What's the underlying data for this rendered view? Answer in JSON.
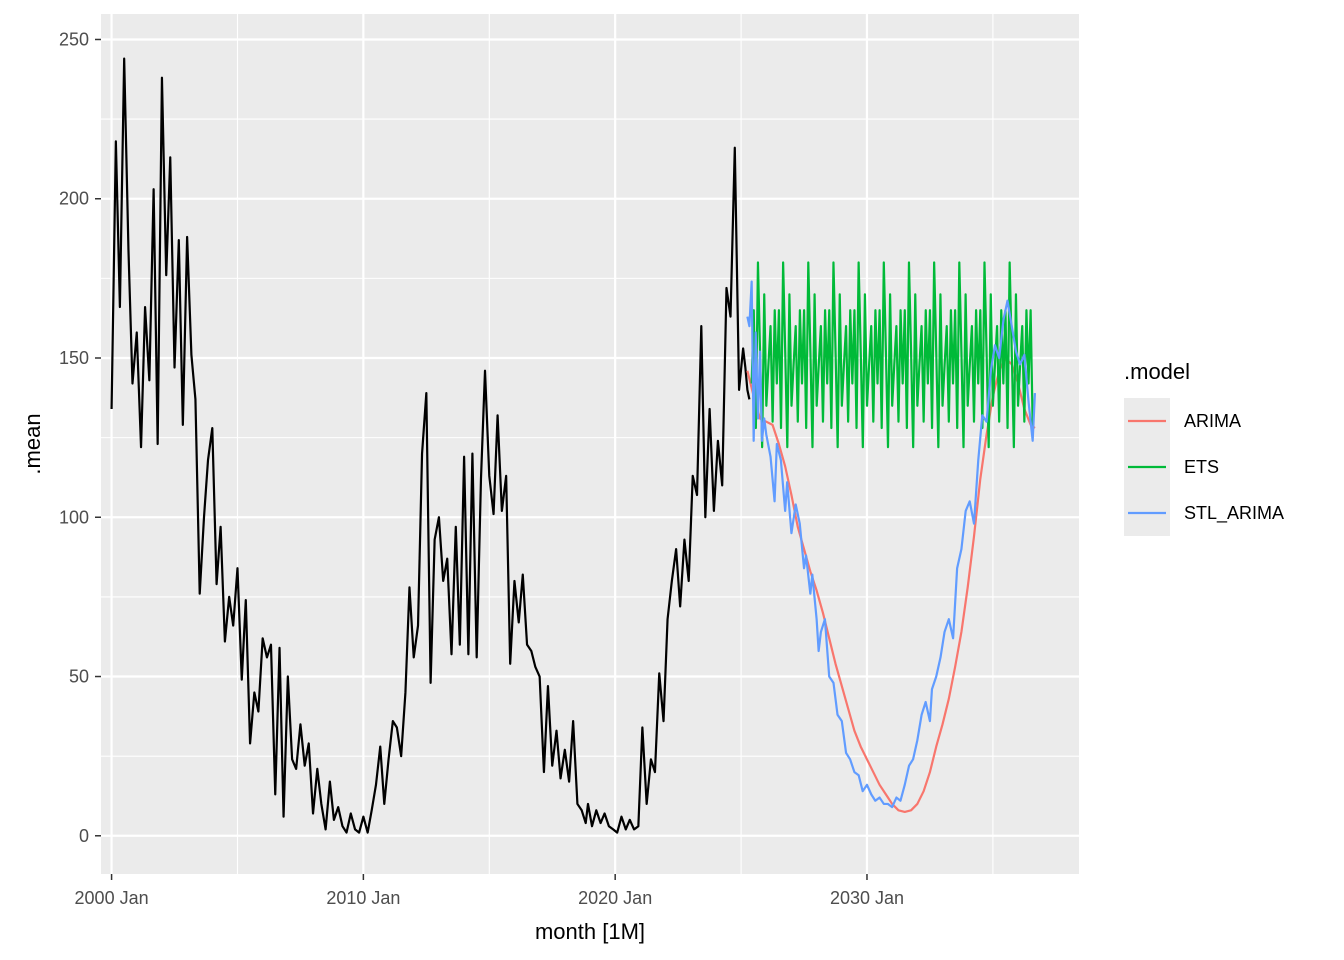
{
  "chart_data": {
    "type": "line",
    "xlabel": "month [1M]",
    "ylabel": ".mean",
    "xlim": [
      1999.58,
      2038.42
    ],
    "ylim": [
      -12,
      258
    ],
    "x_ticks": [
      {
        "value": 2000,
        "label": "2000 Jan"
      },
      {
        "value": 2010,
        "label": "2010 Jan"
      },
      {
        "value": 2020,
        "label": "2020 Jan"
      },
      {
        "value": 2030,
        "label": "2030 Jan"
      }
    ],
    "x_minor_ticks": [
      2005,
      2015,
      2025,
      2035
    ],
    "y_ticks": [
      0,
      50,
      100,
      150,
      200,
      250
    ],
    "y_minor_ticks": [
      25,
      75,
      125,
      175,
      225
    ],
    "grid": true,
    "legend": {
      "title": ".model",
      "placement": "right",
      "entries": [
        {
          "label": "ARIMA",
          "color": "#F8766D"
        },
        {
          "label": "ETS",
          "color": "#00BA38"
        },
        {
          "label": "STL_ARIMA",
          "color": "#619CFF"
        }
      ]
    },
    "history": {
      "color": "#000000",
      "points": [
        [
          2000.0,
          134
        ],
        [
          2000.17,
          218
        ],
        [
          2000.33,
          166
        ],
        [
          2000.5,
          244
        ],
        [
          2000.67,
          184
        ],
        [
          2000.83,
          142
        ],
        [
          2001.0,
          158
        ],
        [
          2001.17,
          122
        ],
        [
          2001.33,
          166
        ],
        [
          2001.5,
          143
        ],
        [
          2001.67,
          203
        ],
        [
          2001.83,
          123
        ],
        [
          2002.0,
          238
        ],
        [
          2002.17,
          176
        ],
        [
          2002.33,
          213
        ],
        [
          2002.5,
          147
        ],
        [
          2002.67,
          187
        ],
        [
          2002.83,
          129
        ],
        [
          2003.0,
          188
        ],
        [
          2003.17,
          151
        ],
        [
          2003.33,
          137
        ],
        [
          2003.5,
          76
        ],
        [
          2003.67,
          100
        ],
        [
          2003.83,
          118
        ],
        [
          2004.0,
          128
        ],
        [
          2004.17,
          79
        ],
        [
          2004.33,
          97
        ],
        [
          2004.5,
          61
        ],
        [
          2004.67,
          75
        ],
        [
          2004.83,
          66
        ],
        [
          2005.0,
          84
        ],
        [
          2005.17,
          49
        ],
        [
          2005.33,
          74
        ],
        [
          2005.5,
          29
        ],
        [
          2005.67,
          45
        ],
        [
          2005.83,
          39
        ],
        [
          2006.0,
          62
        ],
        [
          2006.17,
          56
        ],
        [
          2006.33,
          60
        ],
        [
          2006.5,
          13
        ],
        [
          2006.67,
          59
        ],
        [
          2006.83,
          6
        ],
        [
          2007.0,
          50
        ],
        [
          2007.17,
          24
        ],
        [
          2007.33,
          21
        ],
        [
          2007.5,
          35
        ],
        [
          2007.67,
          22
        ],
        [
          2007.83,
          29
        ],
        [
          2008.0,
          7
        ],
        [
          2008.17,
          21
        ],
        [
          2008.33,
          10
        ],
        [
          2008.5,
          2
        ],
        [
          2008.67,
          17
        ],
        [
          2008.83,
          5
        ],
        [
          2009.0,
          9
        ],
        [
          2009.17,
          3
        ],
        [
          2009.33,
          1
        ],
        [
          2009.5,
          7
        ],
        [
          2009.67,
          2
        ],
        [
          2009.83,
          1
        ],
        [
          2010.0,
          6
        ],
        [
          2010.17,
          1
        ],
        [
          2010.33,
          8
        ],
        [
          2010.5,
          16
        ],
        [
          2010.67,
          28
        ],
        [
          2010.83,
          10
        ],
        [
          2011.0,
          24
        ],
        [
          2011.17,
          36
        ],
        [
          2011.33,
          34
        ],
        [
          2011.5,
          25
        ],
        [
          2011.67,
          45
        ],
        [
          2011.83,
          78
        ],
        [
          2012.0,
          56
        ],
        [
          2012.17,
          66
        ],
        [
          2012.33,
          120
        ],
        [
          2012.5,
          139
        ],
        [
          2012.67,
          48
        ],
        [
          2012.83,
          93
        ],
        [
          2013.0,
          100
        ],
        [
          2013.17,
          80
        ],
        [
          2013.33,
          87
        ],
        [
          2013.5,
          57
        ],
        [
          2013.67,
          97
        ],
        [
          2013.83,
          60
        ],
        [
          2014.0,
          119
        ],
        [
          2014.17,
          57
        ],
        [
          2014.33,
          120
        ],
        [
          2014.5,
          56
        ],
        [
          2014.67,
          112
        ],
        [
          2014.83,
          146
        ],
        [
          2015.0,
          113
        ],
        [
          2015.17,
          101
        ],
        [
          2015.33,
          132
        ],
        [
          2015.5,
          102
        ],
        [
          2015.67,
          113
        ],
        [
          2015.83,
          54
        ],
        [
          2016.0,
          80
        ],
        [
          2016.17,
          67
        ],
        [
          2016.33,
          82
        ],
        [
          2016.5,
          60
        ],
        [
          2016.67,
          58
        ],
        [
          2016.83,
          53
        ],
        [
          2017.0,
          50
        ],
        [
          2017.17,
          20
        ],
        [
          2017.33,
          47
        ],
        [
          2017.5,
          22
        ],
        [
          2017.67,
          33
        ],
        [
          2017.83,
          18
        ],
        [
          2018.0,
          27
        ],
        [
          2018.17,
          17
        ],
        [
          2018.33,
          36
        ],
        [
          2018.5,
          10
        ],
        [
          2018.67,
          8
        ],
        [
          2018.83,
          4
        ],
        [
          2018.92,
          10
        ],
        [
          2019.08,
          3
        ],
        [
          2019.25,
          8
        ],
        [
          2019.42,
          4
        ],
        [
          2019.58,
          7
        ],
        [
          2019.75,
          3
        ],
        [
          2019.92,
          2
        ],
        [
          2020.08,
          1
        ],
        [
          2020.25,
          6
        ],
        [
          2020.42,
          2
        ],
        [
          2020.58,
          5
        ],
        [
          2020.75,
          2
        ],
        [
          2020.92,
          3
        ],
        [
          2021.08,
          34
        ],
        [
          2021.25,
          10
        ],
        [
          2021.42,
          24
        ],
        [
          2021.58,
          20
        ],
        [
          2021.75,
          51
        ],
        [
          2021.92,
          36
        ],
        [
          2022.08,
          68
        ],
        [
          2022.25,
          80
        ],
        [
          2022.42,
          90
        ],
        [
          2022.58,
          72
        ],
        [
          2022.75,
          93
        ],
        [
          2022.92,
          80
        ],
        [
          2023.08,
          113
        ],
        [
          2023.25,
          107
        ],
        [
          2023.42,
          160
        ],
        [
          2023.58,
          100
        ],
        [
          2023.75,
          134
        ],
        [
          2023.92,
          102
        ],
        [
          2024.08,
          124
        ],
        [
          2024.25,
          110
        ],
        [
          2024.42,
          172
        ],
        [
          2024.58,
          163
        ],
        [
          2024.75,
          216
        ],
        [
          2024.92,
          140
        ],
        [
          2025.08,
          153
        ],
        [
          2025.17,
          147
        ],
        [
          2025.25,
          140
        ],
        [
          2025.33,
          137
        ]
      ]
    },
    "series": [
      {
        "name": "ARIMA",
        "color": "#F8766D",
        "points": [
          [
            2025.25,
            146
          ],
          [
            2025.5,
            138
          ],
          [
            2025.75,
            131
          ],
          [
            2026.0,
            130
          ],
          [
            2026.25,
            129
          ],
          [
            2026.5,
            123
          ],
          [
            2026.75,
            116
          ],
          [
            2027.0,
            107
          ],
          [
            2027.25,
            97
          ],
          [
            2027.5,
            90
          ],
          [
            2027.75,
            83
          ],
          [
            2028.0,
            77
          ],
          [
            2028.25,
            70
          ],
          [
            2028.5,
            62
          ],
          [
            2028.75,
            54
          ],
          [
            2029.0,
            47
          ],
          [
            2029.25,
            40
          ],
          [
            2029.5,
            33
          ],
          [
            2029.75,
            28
          ],
          [
            2030.0,
            24
          ],
          [
            2030.25,
            20
          ],
          [
            2030.5,
            16
          ],
          [
            2030.75,
            13
          ],
          [
            2031.0,
            10
          ],
          [
            2031.25,
            8
          ],
          [
            2031.5,
            7.5
          ],
          [
            2031.75,
            8
          ],
          [
            2032.0,
            10
          ],
          [
            2032.25,
            14
          ],
          [
            2032.5,
            20
          ],
          [
            2032.75,
            28
          ],
          [
            2033.0,
            35
          ],
          [
            2033.25,
            43
          ],
          [
            2033.5,
            53
          ],
          [
            2033.75,
            64
          ],
          [
            2034.0,
            78
          ],
          [
            2034.25,
            94
          ],
          [
            2034.5,
            112
          ],
          [
            2034.75,
            126
          ],
          [
            2035.0,
            138
          ],
          [
            2035.25,
            146
          ],
          [
            2035.5,
            150
          ],
          [
            2035.75,
            148
          ],
          [
            2036.0,
            142
          ],
          [
            2036.25,
            134
          ],
          [
            2036.5,
            129
          ],
          [
            2036.67,
            128
          ]
        ]
      },
      {
        "name": "ETS",
        "color": "#00BA38",
        "pattern": [
          142,
          165,
          128,
          180,
          152,
          122,
          170,
          135,
          148,
          160,
          130,
          165
        ],
        "start": 2025.42,
        "step": 0.0833,
        "count": 135
      },
      {
        "name": "STL_ARIMA",
        "color": "#619CFF",
        "points": [
          [
            2025.25,
            163
          ],
          [
            2025.33,
            160
          ],
          [
            2025.42,
            174
          ],
          [
            2025.5,
            124
          ],
          [
            2025.58,
            158
          ],
          [
            2025.67,
            131
          ],
          [
            2025.75,
            152
          ],
          [
            2025.83,
            124
          ],
          [
            2025.92,
            131
          ],
          [
            2026.0,
            126
          ],
          [
            2026.17,
            119
          ],
          [
            2026.33,
            105
          ],
          [
            2026.42,
            123
          ],
          [
            2026.58,
            118
          ],
          [
            2026.75,
            102
          ],
          [
            2026.83,
            111
          ],
          [
            2027.0,
            95
          ],
          [
            2027.17,
            104
          ],
          [
            2027.33,
            98
          ],
          [
            2027.5,
            84
          ],
          [
            2027.58,
            88
          ],
          [
            2027.75,
            76
          ],
          [
            2027.83,
            82
          ],
          [
            2028.0,
            68
          ],
          [
            2028.08,
            58
          ],
          [
            2028.17,
            64
          ],
          [
            2028.33,
            68
          ],
          [
            2028.5,
            50
          ],
          [
            2028.67,
            48
          ],
          [
            2028.83,
            38
          ],
          [
            2029.0,
            36
          ],
          [
            2029.17,
            26
          ],
          [
            2029.33,
            24
          ],
          [
            2029.5,
            20
          ],
          [
            2029.67,
            19
          ],
          [
            2029.83,
            14
          ],
          [
            2030.0,
            16
          ],
          [
            2030.17,
            13
          ],
          [
            2030.33,
            11
          ],
          [
            2030.5,
            12
          ],
          [
            2030.67,
            10
          ],
          [
            2030.83,
            10
          ],
          [
            2031.0,
            9
          ],
          [
            2031.17,
            12
          ],
          [
            2031.33,
            11
          ],
          [
            2031.5,
            16
          ],
          [
            2031.67,
            22
          ],
          [
            2031.83,
            24
          ],
          [
            2032.0,
            30
          ],
          [
            2032.17,
            38
          ],
          [
            2032.33,
            42
          ],
          [
            2032.5,
            36
          ],
          [
            2032.58,
            46
          ],
          [
            2032.75,
            50
          ],
          [
            2032.92,
            56
          ],
          [
            2033.08,
            64
          ],
          [
            2033.25,
            68
          ],
          [
            2033.42,
            62
          ],
          [
            2033.58,
            84
          ],
          [
            2033.75,
            90
          ],
          [
            2033.92,
            102
          ],
          [
            2034.08,
            105
          ],
          [
            2034.25,
            98
          ],
          [
            2034.42,
            118
          ],
          [
            2034.58,
            132
          ],
          [
            2034.75,
            130
          ],
          [
            2034.92,
            146
          ],
          [
            2035.08,
            154
          ],
          [
            2035.25,
            150
          ],
          [
            2035.42,
            162
          ],
          [
            2035.58,
            168
          ],
          [
            2035.75,
            160
          ],
          [
            2035.92,
            152
          ],
          [
            2036.08,
            148
          ],
          [
            2036.25,
            151
          ],
          [
            2036.42,
            136
          ],
          [
            2036.58,
            124
          ],
          [
            2036.67,
            139
          ]
        ]
      }
    ]
  }
}
